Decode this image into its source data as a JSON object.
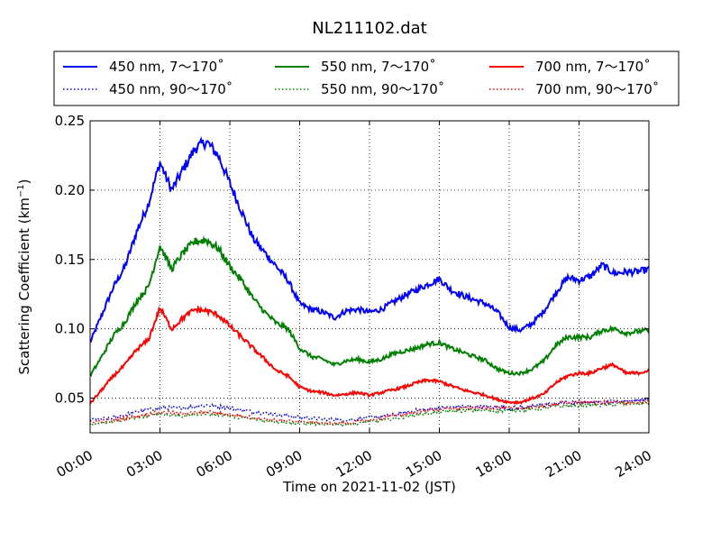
{
  "chart_data": {
    "type": "line",
    "title": "NL211102.dat",
    "xlabel": "Time on 2021-11-02 (JST)",
    "ylabel": "Scattering Coefficient (km",
    "ylabel_sup": "−1",
    "ylabel_close": ")",
    "xlim": [
      0,
      24
    ],
    "ylim": [
      0.025,
      0.25
    ],
    "x_ticks": [
      0,
      3,
      6,
      9,
      12,
      15,
      18,
      21,
      24
    ],
    "x_tick_labels": [
      "00:00",
      "03:00",
      "06:00",
      "09:00",
      "12:00",
      "15:00",
      "18:00",
      "21:00",
      "24:00"
    ],
    "y_ticks": [
      0.05,
      0.1,
      0.15,
      0.2,
      0.25
    ],
    "y_tick_labels": [
      "0.05",
      "0.10",
      "0.15",
      "0.20",
      "0.25"
    ],
    "grid": true,
    "legend_position": "top, above plot",
    "series": [
      {
        "name": "450 nm, 7～170˚",
        "color": "#0000ff",
        "style": "solid",
        "x": [
          0,
          0.5,
          1,
          1.5,
          2,
          2.5,
          3,
          3.5,
          4,
          4.5,
          5,
          5.5,
          6,
          6.5,
          7,
          7.5,
          8,
          8.5,
          9,
          9.5,
          10,
          10.5,
          11,
          11.5,
          12,
          12.5,
          13,
          13.5,
          14,
          14.5,
          15,
          15.5,
          16,
          16.5,
          17,
          17.5,
          18,
          18.5,
          19,
          19.5,
          20,
          20.5,
          21,
          21.5,
          22,
          22.5,
          23,
          23.5,
          24
        ],
        "y": [
          0.09,
          0.11,
          0.13,
          0.145,
          0.17,
          0.19,
          0.22,
          0.2,
          0.215,
          0.23,
          0.235,
          0.225,
          0.205,
          0.185,
          0.165,
          0.155,
          0.145,
          0.135,
          0.118,
          0.114,
          0.112,
          0.108,
          0.113,
          0.114,
          0.112,
          0.114,
          0.119,
          0.124,
          0.128,
          0.132,
          0.136,
          0.128,
          0.124,
          0.121,
          0.118,
          0.112,
          0.101,
          0.099,
          0.104,
          0.113,
          0.126,
          0.137,
          0.135,
          0.138,
          0.146,
          0.14,
          0.141,
          0.141,
          0.143
        ]
      },
      {
        "name": "450 nm, 90～170˚",
        "color": "#0000ff",
        "style": "dotted",
        "x": [
          0,
          1,
          2,
          3,
          4,
          5,
          6,
          7,
          8,
          9,
          10,
          11,
          12,
          13,
          14,
          15,
          16,
          17,
          18,
          19,
          20,
          21,
          22,
          23,
          24
        ],
        "y": [
          0.034,
          0.036,
          0.04,
          0.043,
          0.043,
          0.045,
          0.043,
          0.04,
          0.038,
          0.036,
          0.035,
          0.034,
          0.036,
          0.038,
          0.041,
          0.043,
          0.044,
          0.044,
          0.043,
          0.044,
          0.046,
          0.047,
          0.047,
          0.048,
          0.049
        ]
      },
      {
        "name": "550 nm, 7～170˚",
        "color": "#008000",
        "style": "solid",
        "x": [
          0,
          0.5,
          1,
          1.5,
          2,
          2.5,
          3,
          3.5,
          4,
          4.5,
          5,
          5.5,
          6,
          6.5,
          7,
          7.5,
          8,
          8.5,
          9,
          9.5,
          10,
          10.5,
          11,
          11.5,
          12,
          12.5,
          13,
          13.5,
          14,
          14.5,
          15,
          15.5,
          16,
          16.5,
          17,
          17.5,
          18,
          18.5,
          19,
          19.5,
          20,
          20.5,
          21,
          21.5,
          22,
          22.5,
          23,
          23.5,
          24
        ],
        "y": [
          0.066,
          0.08,
          0.095,
          0.105,
          0.12,
          0.13,
          0.16,
          0.143,
          0.155,
          0.163,
          0.164,
          0.158,
          0.145,
          0.135,
          0.122,
          0.112,
          0.104,
          0.1,
          0.086,
          0.08,
          0.078,
          0.074,
          0.077,
          0.078,
          0.076,
          0.078,
          0.082,
          0.084,
          0.086,
          0.089,
          0.09,
          0.086,
          0.083,
          0.08,
          0.077,
          0.071,
          0.068,
          0.068,
          0.071,
          0.077,
          0.088,
          0.094,
          0.094,
          0.094,
          0.099,
          0.1,
          0.097,
          0.098,
          0.099
        ]
      },
      {
        "name": "550 nm, 90～170˚",
        "color": "#008000",
        "style": "dotted",
        "x": [
          0,
          1,
          2,
          3,
          4,
          5,
          6,
          7,
          8,
          9,
          10,
          11,
          12,
          13,
          14,
          15,
          16,
          17,
          18,
          19,
          20,
          21,
          22,
          23,
          24
        ],
        "y": [
          0.031,
          0.033,
          0.036,
          0.039,
          0.037,
          0.039,
          0.037,
          0.035,
          0.033,
          0.032,
          0.031,
          0.031,
          0.033,
          0.035,
          0.038,
          0.04,
          0.041,
          0.041,
          0.041,
          0.042,
          0.044,
          0.045,
          0.045,
          0.046,
          0.046
        ]
      },
      {
        "name": "700 nm, 7～170˚",
        "color": "#ff0000",
        "style": "solid",
        "x": [
          0,
          0.5,
          1,
          1.5,
          2,
          2.5,
          3,
          3.5,
          4,
          4.5,
          5,
          5.5,
          6,
          6.5,
          7,
          7.5,
          8,
          8.5,
          9,
          9.5,
          10,
          10.5,
          11,
          11.5,
          12,
          12.5,
          13,
          13.5,
          14,
          14.5,
          15,
          15.5,
          16,
          16.5,
          17,
          17.5,
          18,
          18.5,
          19,
          19.5,
          20,
          20.5,
          21,
          21.5,
          22,
          22.5,
          23,
          23.5,
          24
        ],
        "y": [
          0.046,
          0.056,
          0.066,
          0.074,
          0.085,
          0.092,
          0.115,
          0.1,
          0.108,
          0.114,
          0.113,
          0.11,
          0.102,
          0.094,
          0.086,
          0.078,
          0.07,
          0.066,
          0.058,
          0.055,
          0.054,
          0.052,
          0.053,
          0.054,
          0.052,
          0.054,
          0.056,
          0.058,
          0.061,
          0.063,
          0.062,
          0.059,
          0.056,
          0.054,
          0.052,
          0.049,
          0.047,
          0.047,
          0.05,
          0.053,
          0.061,
          0.066,
          0.068,
          0.068,
          0.072,
          0.074,
          0.068,
          0.068,
          0.07
        ]
      },
      {
        "name": "700 nm, 90～170˚",
        "color": "#ff0000",
        "style": "dotted",
        "x": [
          0,
          1,
          2,
          3,
          4,
          5,
          6,
          7,
          8,
          9,
          10,
          11,
          12,
          13,
          14,
          15,
          16,
          17,
          18,
          19,
          20,
          21,
          22,
          23,
          24
        ],
        "y": [
          0.033,
          0.034,
          0.037,
          0.04,
          0.039,
          0.04,
          0.038,
          0.036,
          0.034,
          0.033,
          0.032,
          0.032,
          0.034,
          0.037,
          0.04,
          0.042,
          0.043,
          0.043,
          0.043,
          0.043,
          0.046,
          0.047,
          0.047,
          0.047,
          0.047
        ]
      }
    ]
  }
}
